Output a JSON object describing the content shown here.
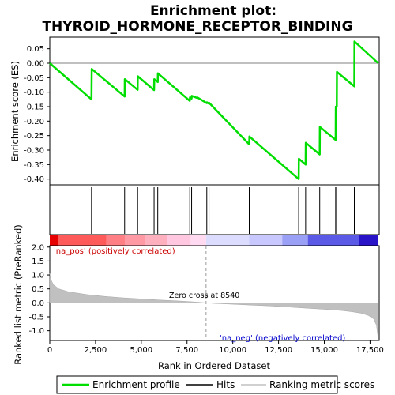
{
  "title_line1": "Enrichment plot:",
  "title_line2": "THYROID_HORMONE_RECEPTOR_BINDING",
  "colors": {
    "enrichment_line": "#00dd00",
    "hit_line": "#000000",
    "metric_fill": "#c0c0c0",
    "positive_label": "#cc0000",
    "negative_label": "#0000cc"
  },
  "chart_data": [
    {
      "type": "line",
      "name": "enrichment-profile",
      "ylabel": "Enrichment score (ES)",
      "xlim": [
        0,
        18000
      ],
      "ylim": [
        -0.42,
        0.09
      ],
      "yticks": [
        0.05,
        0.0,
        -0.05,
        -0.1,
        -0.15,
        -0.2,
        -0.25,
        -0.3,
        -0.35,
        -0.4
      ],
      "ytick_labels": [
        "0.05",
        "0.00",
        "-0.05",
        "-0.10",
        "-0.15",
        "-0.20",
        "-0.25",
        "-0.30",
        "-0.35",
        "-0.40"
      ],
      "x": [
        0,
        2280,
        2290,
        4090,
        4100,
        4800,
        4810,
        5700,
        5710,
        5900,
        5910,
        7650,
        7660,
        7750,
        7760,
        8050,
        8060,
        8580,
        8590,
        8700,
        8710,
        10900,
        10910,
        13600,
        13610,
        13980,
        13990,
        14750,
        14760,
        15620,
        15630,
        15680,
        15690,
        16640,
        16650,
        17950
      ],
      "y": [
        0.0,
        -0.125,
        -0.02,
        -0.115,
        -0.055,
        -0.092,
        -0.045,
        -0.093,
        -0.055,
        -0.065,
        -0.035,
        -0.13,
        -0.118,
        -0.122,
        -0.113,
        -0.12,
        -0.118,
        -0.138,
        -0.135,
        -0.14,
        -0.137,
        -0.28,
        -0.253,
        -0.4,
        -0.33,
        -0.35,
        -0.275,
        -0.315,
        -0.22,
        -0.265,
        -0.15,
        -0.15,
        -0.03,
        -0.08,
        0.075,
        0.0
      ]
    },
    {
      "type": "hits",
      "name": "hits",
      "positions": [
        2280,
        4090,
        4800,
        5700,
        5900,
        7650,
        7750,
        8050,
        8580,
        8700,
        10900,
        13600,
        13980,
        14750,
        15620,
        15680,
        16640
      ]
    },
    {
      "type": "area",
      "name": "ranking-metric-scores",
      "xlabel": "Rank in Ordered Dataset",
      "ylabel": "Ranked list metric (PreRanked)",
      "xlim": [
        0,
        18000
      ],
      "ylim": [
        -1.35,
        2.05
      ],
      "xticks": [
        0,
        2500,
        5000,
        7500,
        10000,
        12500,
        15000,
        17500
      ],
      "xtick_labels": [
        "0",
        "2,500",
        "5,000",
        "7,500",
        "10,000",
        "12,500",
        "15,000",
        "17,500"
      ],
      "yticks": [
        2.0,
        1.5,
        1.0,
        0.5,
        0.0,
        -0.5,
        -1.0
      ],
      "ytick_labels": [
        "2.0",
        "1.5",
        "1.0",
        "0.5",
        "0.0",
        "-0.5",
        "-1.0"
      ],
      "x": [
        0,
        50,
        200,
        500,
        1000,
        2000,
        3000,
        4000,
        5000,
        6000,
        7000,
        8000,
        8540,
        9000,
        10000,
        11000,
        12000,
        13000,
        14000,
        15000,
        16000,
        16500,
        17000,
        17400,
        17700,
        17850,
        17950
      ],
      "y": [
        1.05,
        0.85,
        0.65,
        0.5,
        0.4,
        0.3,
        0.23,
        0.18,
        0.14,
        0.1,
        0.07,
        0.03,
        0.0,
        -0.02,
        -0.05,
        -0.08,
        -0.11,
        -0.15,
        -0.19,
        -0.23,
        -0.28,
        -0.32,
        -0.37,
        -0.45,
        -0.58,
        -0.8,
        -1.3
      ],
      "zero_cross": 8540,
      "zero_cross_label": "Zero cross at 8540",
      "positive_label": "'na_pos' (positively correlated)",
      "negative_label": "'na_neg' (negatively correlated)"
    }
  ],
  "color_bar": [
    {
      "from": 0,
      "to": 450,
      "color": "#e60000"
    },
    {
      "from": 450,
      "to": 3100,
      "color": "#ff5a5a"
    },
    {
      "from": 3100,
      "to": 4100,
      "color": "#ff7f85"
    },
    {
      "from": 4100,
      "to": 5200,
      "color": "#ff9aa5"
    },
    {
      "from": 5200,
      "to": 6400,
      "color": "#ffb0be"
    },
    {
      "from": 6400,
      "to": 7700,
      "color": "#ffc8e0"
    },
    {
      "from": 7700,
      "to": 8540,
      "color": "#ffdaf0"
    },
    {
      "from": 8540,
      "to": 10900,
      "color": "#dcdcff"
    },
    {
      "from": 10900,
      "to": 12700,
      "color": "#c8c8ff"
    },
    {
      "from": 12700,
      "to": 14100,
      "color": "#9aa0f5"
    },
    {
      "from": 14100,
      "to": 16900,
      "color": "#5a5ae6"
    },
    {
      "from": 16900,
      "to": 17950,
      "color": "#2a14c8"
    }
  ],
  "legend": {
    "items": [
      {
        "label": "Enrichment profile",
        "color": "#00dd00",
        "kind": "line"
      },
      {
        "label": "Hits",
        "color": "#000000",
        "kind": "line"
      },
      {
        "label": "Ranking metric scores",
        "color": "#c0c0c0",
        "kind": "line"
      }
    ]
  }
}
